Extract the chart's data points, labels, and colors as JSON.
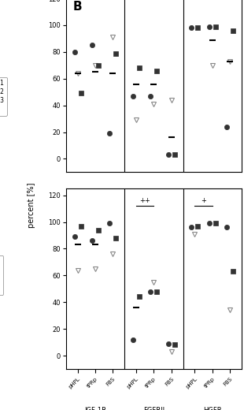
{
  "title_label": "B",
  "ylabel": "percent [%]",
  "groups": [
    "IGF-1R",
    "FGFRII",
    "HGFR"
  ],
  "supplements": [
    "pHPL",
    "tPRp",
    "FBS"
  ],
  "BM": {
    "IGF-1R": {
      "pHPL": {
        "BM1": 80,
        "BM2": 64,
        "BM3": 49,
        "MW": 64
      },
      "tPRp": {
        "BM1": 85,
        "BM2": 70,
        "BM3": 70,
        "MW": 65
      },
      "FBS": {
        "BM1": 19,
        "BM2": 91,
        "BM3": 79,
        "MW": 64
      }
    },
    "FGFRII": {
      "pHPL": {
        "BM1": 47,
        "BM2": 29,
        "BM3": 68,
        "MW": 56
      },
      "tPRp": {
        "BM1": 47,
        "BM2": 41,
        "BM3": 66,
        "MW": 56
      },
      "FBS": {
        "BM1": 3,
        "BM2": 44,
        "BM3": 3,
        "MW": 16
      }
    },
    "HGFR": {
      "pHPL": {
        "BM1": 98,
        "BM2": null,
        "BM3": 98,
        "MW": null
      },
      "tPRp": {
        "BM1": 99,
        "BM2": 70,
        "BM3": 99,
        "MW": 89
      },
      "FBS": {
        "BM1": 24,
        "BM2": 73,
        "BM3": 96,
        "MW": 73
      }
    }
  },
  "LA": {
    "IGF-1R": {
      "pHPL": {
        "LA1": 89,
        "LA2": 64,
        "LA3": 97,
        "MW": 83
      },
      "tPRp": {
        "LA1": 86,
        "LA2": 65,
        "LA3": 94,
        "MW": 83
      },
      "FBS": {
        "LA1": 99,
        "LA2": 76,
        "LA3": 88,
        "MW": null
      }
    },
    "FGFRII": {
      "pHPL": {
        "LA1": 12,
        "LA2": null,
        "LA3": 44,
        "MW": 36
      },
      "tPRp": {
        "LA1": 48,
        "LA2": 55,
        "LA3": 48,
        "MW": null
      },
      "FBS": {
        "LA1": 9,
        "LA2": 3,
        "LA3": 8,
        "MW": null
      }
    },
    "HGFR": {
      "pHPL": {
        "LA1": 96,
        "LA2": 91,
        "LA3": 97,
        "MW": null
      },
      "tPRp": {
        "LA1": 99,
        "LA2": null,
        "LA3": 99,
        "MW": null
      },
      "FBS": {
        "LA1": 96,
        "LA2": 34,
        "LA3": 63,
        "MW": null
      }
    }
  },
  "color_dark": "#333333",
  "color_open": "#888888",
  "color_black": "#000000",
  "bg_color": "#f0f0f0"
}
